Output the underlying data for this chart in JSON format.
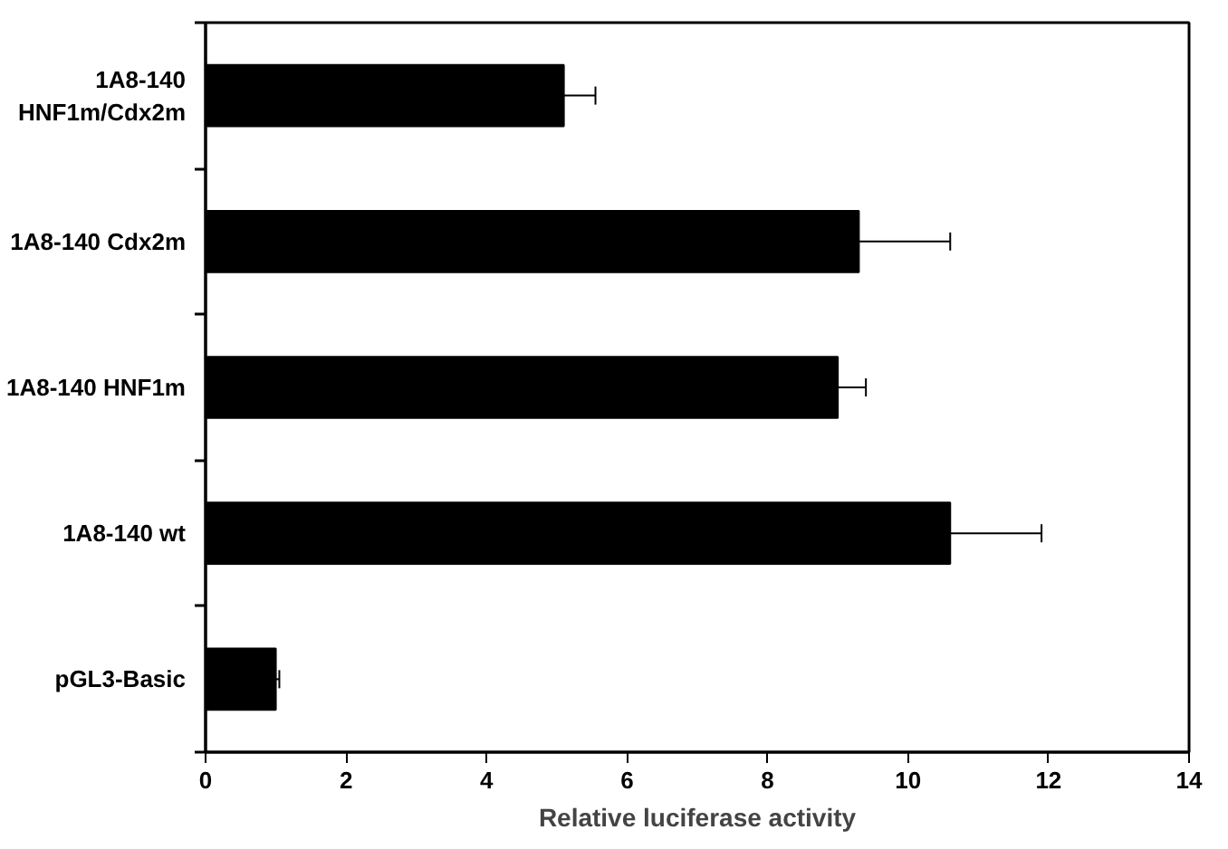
{
  "chart_data": {
    "type": "bar",
    "orientation": "horizontal",
    "xlabel": "Relative luciferase activity",
    "categories": [
      "1A8-140 HNF1m/Cdx2m",
      "1A8-140 Cdx2m",
      "1A8-140 HNF1m",
      "1A8-140 wt",
      "pGL3-Basic"
    ],
    "values": [
      5.1,
      9.3,
      9.0,
      10.6,
      1.0
    ],
    "errors": [
      [
        5.1,
        5.55
      ],
      [
        9.3,
        10.6
      ],
      [
        9.0,
        9.4
      ],
      [
        10.6,
        11.9
      ],
      [
        1.0,
        1.05
      ]
    ],
    "color": "#000000",
    "xlim": [
      0,
      14
    ],
    "xticks": [
      0,
      2,
      4,
      6,
      8,
      10,
      12,
      14
    ],
    "grid": false
  }
}
